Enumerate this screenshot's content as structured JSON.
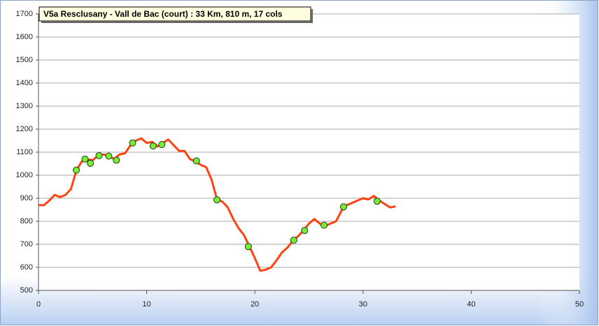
{
  "chart_data": {
    "type": "line",
    "title": "V5a Resclusany  - Vall de Bac (court) : 33 Km, 810 m, 17 cols",
    "xlim": [
      0,
      50
    ],
    "xticks": [
      0,
      10,
      20,
      30,
      40,
      50
    ],
    "ylim": [
      500,
      1700
    ],
    "yticks": [
      500,
      600,
      700,
      800,
      900,
      1000,
      1100,
      1200,
      1300,
      1400,
      1500,
      1600,
      1700
    ],
    "grid": true,
    "series": [
      {
        "color": "#ff4411",
        "style": "line",
        "x": [
          0,
          0.5,
          1,
          1.5,
          2,
          2.5,
          3,
          3.5,
          4,
          4.5,
          5,
          5.5,
          6,
          6.5,
          7,
          7.5,
          8,
          8.5,
          9,
          9.5,
          10,
          10.5,
          11,
          11.5,
          12,
          12.5,
          13,
          13.5,
          14,
          14.5,
          15,
          15.5,
          16,
          16.5,
          17,
          17.5,
          18,
          18.5,
          19,
          19.5,
          20,
          20.5,
          21,
          21.5,
          22,
          22.5,
          23,
          23.5,
          24,
          24.5,
          25,
          25.5,
          26,
          26.5,
          27,
          27.5,
          28,
          28.5,
          29,
          29.5,
          30,
          30.5,
          31,
          31.5,
          32,
          32.5,
          33
        ],
        "values": [
          870,
          870,
          890,
          915,
          905,
          915,
          940,
          1020,
          1060,
          1070,
          1065,
          1085,
          1090,
          1085,
          1070,
          1090,
          1095,
          1130,
          1150,
          1160,
          1140,
          1145,
          1125,
          1140,
          1155,
          1130,
          1105,
          1105,
          1070,
          1060,
          1045,
          1035,
          980,
          895,
          885,
          860,
          810,
          770,
          740,
          690,
          640,
          585,
          590,
          600,
          630,
          665,
          685,
          715,
          735,
          760,
          790,
          810,
          790,
          780,
          790,
          800,
          845,
          870,
          880,
          890,
          900,
          895,
          910,
          890,
          875,
          860,
          865
        ]
      },
      {
        "color": "#77ee33",
        "style": "marker",
        "x": [
          3.5,
          4.3,
          4.8,
          5.6,
          6.5,
          7.2,
          8.7,
          10.6,
          11.4,
          14.6,
          16.5,
          19.4,
          23.6,
          24.6,
          26.4,
          28.2,
          31.3
        ],
        "values": [
          1022,
          1070,
          1052,
          1085,
          1083,
          1065,
          1140,
          1127,
          1133,
          1062,
          893,
          690,
          718,
          760,
          783,
          863,
          887
        ]
      }
    ]
  }
}
